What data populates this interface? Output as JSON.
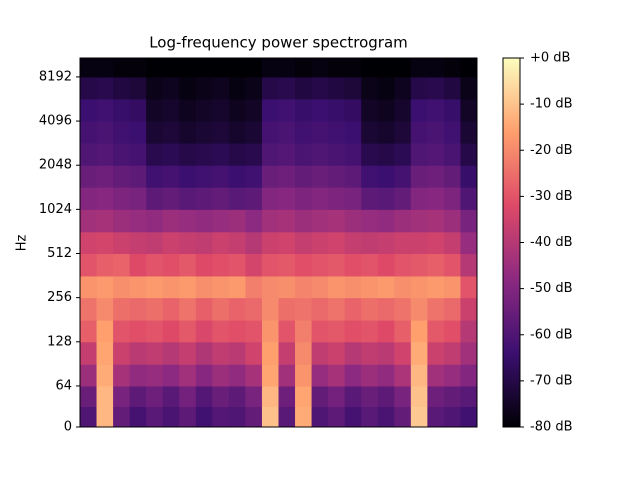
{
  "chart_data": {
    "type": "heatmap",
    "title": "Log-frequency power spectrogram",
    "ylabel": "Hz",
    "ylim": [
      0,
      11025
    ],
    "yticks": [
      0,
      64,
      128,
      256,
      512,
      1024,
      2048,
      4096,
      8192
    ],
    "yscale": "symlog",
    "y_edges": [
      0,
      32,
      64,
      90,
      128,
      180,
      256,
      360,
      512,
      720,
      1024,
      1450,
      2048,
      2900,
      4096,
      5800,
      8192,
      11025
    ],
    "clim": [
      -80,
      0
    ],
    "cticks": [
      {
        "value": 0,
        "label": "+0 dB"
      },
      {
        "value": -10,
        "label": "-10 dB"
      },
      {
        "value": -20,
        "label": "-20 dB"
      },
      {
        "value": -30,
        "label": "-30 dB"
      },
      {
        "value": -40,
        "label": "-40 dB"
      },
      {
        "value": -50,
        "label": "-50 dB"
      },
      {
        "value": -60,
        "label": "-60 dB"
      },
      {
        "value": -70,
        "label": "-70 dB"
      },
      {
        "value": -80,
        "label": "-80 dB"
      }
    ],
    "colormap": [
      "#000004",
      "#3b0f70",
      "#8c2981",
      "#de4968",
      "#fe9f6d",
      "#fcfdbf"
    ],
    "z": [
      [
        -60,
        -12,
        -56,
        -62,
        -58,
        -61,
        -57,
        -63,
        -59,
        -60,
        -56,
        -10,
        -58,
        -14,
        -60,
        -57,
        -62,
        -58,
        -61,
        -56,
        -9,
        -58,
        -60,
        -63
      ],
      [
        -55,
        -12,
        -52,
        -57,
        -54,
        -58,
        -53,
        -59,
        -55,
        -57,
        -52,
        -12,
        -54,
        -15,
        -56,
        -53,
        -58,
        -55,
        -57,
        -52,
        -10,
        -54,
        -56,
        -58
      ],
      [
        -45,
        -14,
        -43,
        -47,
        -46,
        -48,
        -44,
        -49,
        -45,
        -47,
        -43,
        -15,
        -44,
        -18,
        -46,
        -43,
        -48,
        -45,
        -47,
        -42,
        -12,
        -44,
        -46,
        -50
      ],
      [
        -37,
        -15,
        -36,
        -39,
        -38,
        -40,
        -37,
        -41,
        -38,
        -39,
        -35,
        -16,
        -37,
        -20,
        -38,
        -36,
        -40,
        -38,
        -39,
        -35,
        -14,
        -36,
        -38,
        -44
      ],
      [
        -28,
        -16,
        -30,
        -31,
        -30,
        -32,
        -29,
        -33,
        -30,
        -31,
        -30,
        -18,
        -30,
        -22,
        -30,
        -29,
        -31,
        -30,
        -32,
        -28,
        -16,
        -29,
        -31,
        -40
      ],
      [
        -24,
        -20,
        -25,
        -26,
        -25,
        -27,
        -24,
        -28,
        -25,
        -27,
        -26,
        -20,
        -25,
        -24,
        -26,
        -24,
        -27,
        -25,
        -26,
        -24,
        -20,
        -24,
        -26,
        -36
      ],
      [
        -18,
        -17,
        -19,
        -18,
        -17,
        -18,
        -17,
        -19,
        -18,
        -17,
        -22,
        -20,
        -19,
        -21,
        -20,
        -18,
        -19,
        -18,
        -17,
        -19,
        -18,
        -17,
        -18,
        -30
      ],
      [
        -30,
        -28,
        -27,
        -32,
        -30,
        -31,
        -29,
        -32,
        -31,
        -30,
        -34,
        -30,
        -29,
        -31,
        -30,
        -29,
        -31,
        -30,
        -32,
        -30,
        -29,
        -28,
        -30,
        -40
      ],
      [
        -35,
        -34,
        -36,
        -37,
        -38,
        -36,
        -37,
        -38,
        -36,
        -37,
        -40,
        -36,
        -35,
        -37,
        -36,
        -35,
        -37,
        -38,
        -37,
        -36,
        -36,
        -35,
        -37,
        -46
      ],
      [
        -44,
        -43,
        -45,
        -46,
        -47,
        -45,
        -46,
        -47,
        -46,
        -45,
        -48,
        -44,
        -43,
        -45,
        -44,
        -43,
        -45,
        -46,
        -47,
        -45,
        -44,
        -43,
        -45,
        -52
      ],
      [
        -50,
        -49,
        -51,
        -52,
        -57,
        -56,
        -58,
        -57,
        -56,
        -58,
        -57,
        -50,
        -49,
        -51,
        -50,
        -51,
        -52,
        -57,
        -58,
        -56,
        -50,
        -49,
        -51,
        -60
      ],
      [
        -55,
        -54,
        -56,
        -57,
        -63,
        -62,
        -64,
        -63,
        -62,
        -64,
        -63,
        -55,
        -54,
        -56,
        -55,
        -56,
        -57,
        -63,
        -64,
        -62,
        -55,
        -54,
        -56,
        -65
      ],
      [
        -60,
        -59,
        -61,
        -62,
        -69,
        -68,
        -70,
        -69,
        -68,
        -70,
        -69,
        -60,
        -59,
        -61,
        -60,
        -61,
        -62,
        -69,
        -70,
        -68,
        -60,
        -59,
        -61,
        -70
      ],
      [
        -62,
        -61,
        -63,
        -64,
        -73,
        -72,
        -74,
        -73,
        -72,
        -74,
        -73,
        -62,
        -61,
        -63,
        -62,
        -63,
        -64,
        -73,
        -74,
        -72,
        -62,
        -61,
        -63,
        -73
      ],
      [
        -64,
        -63,
        -65,
        -66,
        -75,
        -74,
        -76,
        -75,
        -74,
        -76,
        -75,
        -64,
        -63,
        -65,
        -64,
        -65,
        -66,
        -75,
        -76,
        -74,
        -64,
        -63,
        -65,
        -75
      ],
      [
        -70,
        -69,
        -71,
        -72,
        -77,
        -76,
        -78,
        -77,
        -76,
        -78,
        -77,
        -70,
        -69,
        -71,
        -70,
        -71,
        -72,
        -77,
        -78,
        -76,
        -70,
        -69,
        -71,
        -77
      ],
      [
        -78,
        -78,
        -79,
        -79,
        -80,
        -80,
        -80,
        -80,
        -80,
        -80,
        -80,
        -78,
        -78,
        -79,
        -78,
        -79,
        -79,
        -80,
        -80,
        -80,
        -78,
        -78,
        -79,
        -80
      ]
    ]
  }
}
